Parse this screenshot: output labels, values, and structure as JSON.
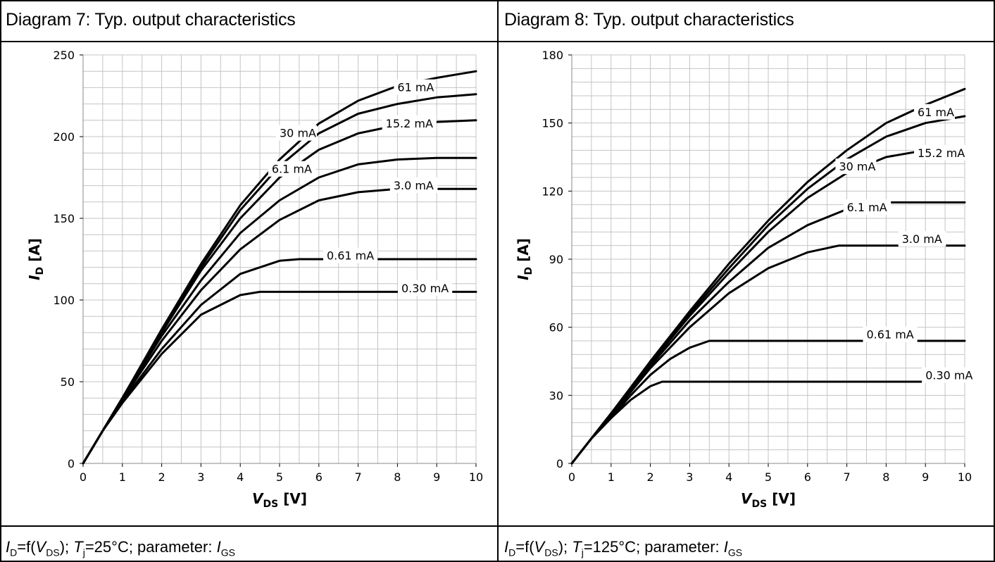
{
  "panels": [
    {
      "title": "Diagram 7: Typ. output characteristics",
      "caption": {
        "id_main": "I",
        "id_sub": "D",
        "func": "=f(",
        "v_main": "V",
        "v_sub": "DS",
        "mid": "); ",
        "t_main": "T",
        "t_sub": "j",
        "temp": "=25°C; parameter: ",
        "i_main": "I",
        "i_sub": "GS"
      }
    },
    {
      "title": "Diagram 8: Typ. output characteristics",
      "caption": {
        "id_main": "I",
        "id_sub": "D",
        "func": "=f(",
        "v_main": "V",
        "v_sub": "DS",
        "mid": "); ",
        "t_main": "T",
        "t_sub": "j",
        "temp": "=125°C; parameter: ",
        "i_main": "I",
        "i_sub": "GS"
      }
    }
  ],
  "chart_data": [
    {
      "type": "line",
      "xlabel_main": "V",
      "xlabel_sub": "DS",
      "xlabel_unit": "[V]",
      "ylabel_main": "I",
      "ylabel_sub": "D",
      "ylabel_unit": "[A]",
      "xlim": [
        0,
        10
      ],
      "ylim": [
        0,
        250
      ],
      "xticks": [
        0,
        1,
        2,
        3,
        4,
        5,
        6,
        7,
        8,
        9,
        10
      ],
      "yticks": [
        0,
        50,
        100,
        150,
        200,
        250
      ],
      "grid": true,
      "series": [
        {
          "name": "61 mA",
          "x": [
            0,
            0.5,
            1,
            2,
            3,
            4,
            5,
            6,
            7,
            8,
            9,
            10
          ],
          "y": [
            0,
            20,
            40,
            82,
            122,
            158,
            186,
            208,
            222,
            231,
            236,
            240
          ],
          "label_at": [
            8.0,
            229
          ]
        },
        {
          "name": "30 mA",
          "x": [
            0,
            0.5,
            1,
            2,
            3,
            4,
            5,
            6,
            7,
            8,
            9,
            10
          ],
          "y": [
            0,
            20,
            40,
            81,
            120,
            155,
            182,
            202,
            214,
            220,
            224,
            226
          ],
          "label_at": [
            5.0,
            201
          ]
        },
        {
          "name": "15.2 mA",
          "x": [
            0,
            0.5,
            1,
            2,
            3,
            4,
            5,
            6,
            7,
            8,
            9,
            10
          ],
          "y": [
            0,
            20,
            40,
            80,
            118,
            150,
            175,
            192,
            202,
            207,
            209,
            210
          ],
          "label_at": [
            7.7,
            207
          ]
        },
        {
          "name": "6.1 mA",
          "x": [
            0,
            0.5,
            1,
            2,
            3,
            4,
            5,
            6,
            7,
            8,
            9,
            10
          ],
          "y": [
            0,
            20,
            40,
            78,
            112,
            141,
            161,
            175,
            183,
            186,
            187,
            187
          ],
          "label_at": [
            4.8,
            179
          ]
        },
        {
          "name": "3.0 mA",
          "x": [
            0,
            0.5,
            1,
            2,
            3,
            4,
            5,
            6,
            7,
            8,
            9,
            10
          ],
          "y": [
            0,
            20,
            39,
            75,
            106,
            131,
            149,
            161,
            166,
            168,
            168,
            168
          ],
          "label_at": [
            7.9,
            169
          ]
        },
        {
          "name": "0.61 mA",
          "x": [
            0,
            0.5,
            1,
            2,
            3,
            4,
            5,
            5.5,
            6,
            7,
            8,
            9,
            10
          ],
          "y": [
            0,
            20,
            38,
            70,
            97,
            116,
            124,
            125,
            125,
            125,
            125,
            125,
            125
          ],
          "label_at": [
            6.2,
            126
          ]
        },
        {
          "name": "0.30 mA",
          "x": [
            0,
            0.5,
            1,
            2,
            3,
            4,
            4.5,
            5,
            6,
            7,
            8,
            9,
            10
          ],
          "y": [
            0,
            20,
            37,
            67,
            91,
            103,
            105,
            105,
            105,
            105,
            105,
            105,
            105
          ],
          "label_at": [
            8.1,
            106
          ]
        }
      ]
    },
    {
      "type": "line",
      "xlabel_main": "V",
      "xlabel_sub": "DS",
      "xlabel_unit": "[V]",
      "ylabel_main": "I",
      "ylabel_sub": "D",
      "ylabel_unit": "[A]",
      "xlim": [
        0,
        10
      ],
      "ylim": [
        0,
        180
      ],
      "xticks": [
        0,
        1,
        2,
        3,
        4,
        5,
        6,
        7,
        8,
        9,
        10
      ],
      "yticks": [
        0,
        30,
        60,
        90,
        120,
        150,
        180
      ],
      "grid": true,
      "series": [
        {
          "name": "61 mA",
          "x": [
            0,
            0.5,
            1,
            2,
            3,
            4,
            5,
            6,
            7,
            8,
            9,
            10
          ],
          "y": [
            0,
            11,
            22,
            45,
            67,
            88,
            107,
            124,
            138,
            150,
            158,
            165
          ],
          "label_at": [
            8.8,
            154
          ]
        },
        {
          "name": "30 mA",
          "x": [
            0,
            0.5,
            1,
            2,
            3,
            4,
            5,
            6,
            7,
            8,
            9,
            10
          ],
          "y": [
            0,
            11,
            22,
            44,
            66,
            86,
            105,
            121,
            134,
            144,
            150,
            153
          ],
          "label_at": [
            6.8,
            130
          ]
        },
        {
          "name": "15.2 mA",
          "x": [
            0,
            0.5,
            1,
            2,
            3,
            4,
            5,
            6,
            7,
            8,
            9,
            10
          ],
          "y": [
            0,
            11,
            22,
            44,
            65,
            84,
            102,
            117,
            128,
            135,
            138,
            139
          ],
          "label_at": [
            8.8,
            136
          ]
        },
        {
          "name": "6.1 mA",
          "x": [
            0,
            0.5,
            1,
            2,
            3,
            4,
            5,
            6,
            7,
            8,
            9,
            10
          ],
          "y": [
            0,
            11,
            22,
            43,
            63,
            80,
            95,
            105,
            112,
            115,
            115,
            115
          ],
          "label_at": [
            7.0,
            112
          ]
        },
        {
          "name": "3.0 mA",
          "x": [
            0,
            0.5,
            1,
            2,
            3,
            4,
            5,
            6,
            6.8,
            7,
            8,
            9,
            10
          ],
          "y": [
            0,
            11,
            21,
            42,
            60,
            75,
            86,
            93,
            96,
            96,
            96,
            96,
            96
          ],
          "label_at": [
            8.4,
            98
          ]
        },
        {
          "name": "0.61 mA",
          "x": [
            0,
            0.5,
            1,
            1.5,
            2,
            2.5,
            3,
            3.5,
            4,
            5,
            6,
            7,
            8,
            9,
            10
          ],
          "y": [
            0,
            11,
            20,
            30,
            39,
            46,
            51,
            54,
            54,
            54,
            54,
            54,
            54,
            54,
            54
          ],
          "label_at": [
            7.5,
            56
          ]
        },
        {
          "name": "0.30 mA",
          "x": [
            0,
            0.5,
            1,
            1.5,
            2,
            2.3,
            2.5,
            3,
            4,
            5,
            6,
            7,
            8,
            9,
            10
          ],
          "y": [
            0,
            11,
            20,
            28,
            34,
            36,
            36,
            36,
            36,
            36,
            36,
            36,
            36,
            36,
            36
          ],
          "label_at": [
            9.0,
            38
          ]
        }
      ]
    }
  ]
}
